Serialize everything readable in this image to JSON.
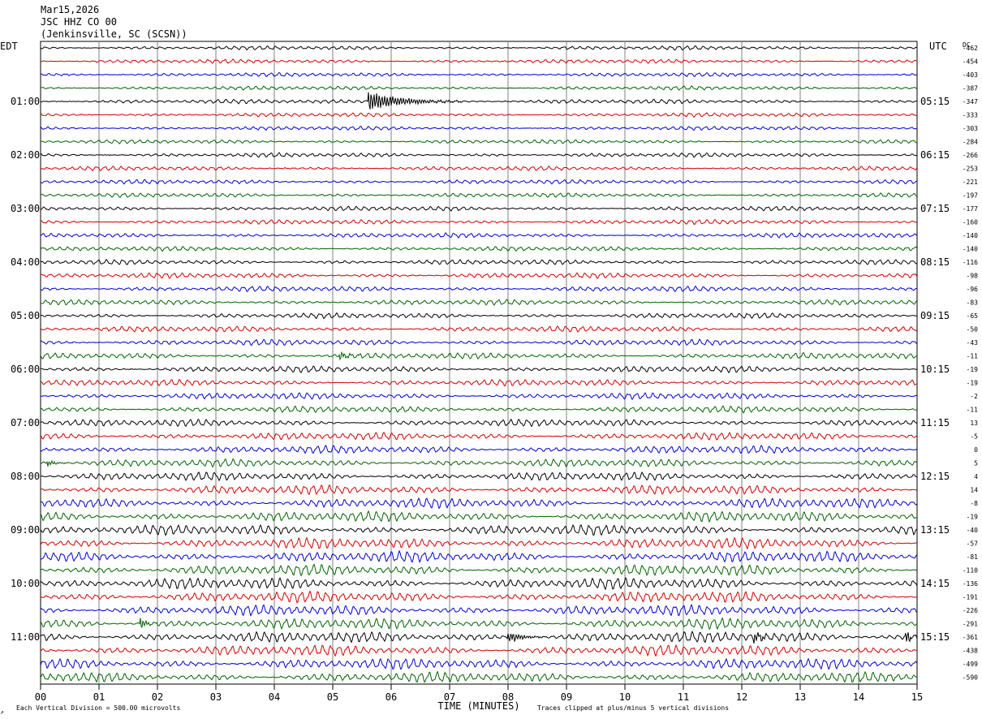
{
  "header": {
    "date": "Mar15,2026",
    "station": "JSC HHZ CO 00",
    "location": "(Jenkinsville, SC (SCSN))"
  },
  "footer": {
    "scale_note": "Each Vertical Division =  500.00 microvolts",
    "clip_note": "Traces clipped at plus/minus 5 vertical divisions",
    "corner_mark": "↗"
  },
  "chart_data": {
    "type": "line",
    "subtype": "helicorder",
    "xlabel": "TIME (MINUTES)",
    "xlim": [
      0,
      15
    ],
    "x_ticks": [
      "00",
      "01",
      "02",
      "03",
      "04",
      "05",
      "06",
      "07",
      "08",
      "09",
      "10",
      "11",
      "12",
      "13",
      "14",
      "15"
    ],
    "left_axis_label": "EDT",
    "right_axis_label": "UTC",
    "dc_label": "DC",
    "vertical_gridlines": true,
    "trace_colors": [
      "#000000",
      "#d10000",
      "#0000d0",
      "#006400"
    ],
    "hour_labels_left": [
      "01:00",
      "02:00",
      "03:00",
      "04:00",
      "05:00",
      "06:00",
      "07:00",
      "08:00",
      "09:00",
      "10:00",
      "11:00"
    ],
    "hour_labels_right": [
      "05:15",
      "06:15",
      "07:15",
      "08:15",
      "09:15",
      "10:15",
      "11:15",
      "12:15",
      "13:15",
      "14:15",
      "15:15"
    ],
    "first_labeled_row": 4,
    "rows_per_hour": 4,
    "row_count": 48,
    "dc_offsets": [
      -462,
      -454,
      -403,
      -387,
      -347,
      -333,
      -303,
      -284,
      -266,
      -253,
      -221,
      -197,
      -177,
      -160,
      -140,
      -140,
      -116,
      -98,
      -96,
      -83,
      -65,
      -50,
      -43,
      -11,
      -19,
      -19,
      -2,
      -11,
      13,
      -5,
      0,
      5,
      4,
      14,
      -8,
      -19,
      -40,
      -57,
      -81,
      -110,
      -136,
      -191,
      -226,
      -291,
      -361,
      -438,
      -499,
      -590
    ],
    "trace_amplitude_relative": [
      0.22,
      0.22,
      0.22,
      0.22,
      0.24,
      0.22,
      0.22,
      0.22,
      0.24,
      0.24,
      0.24,
      0.24,
      0.26,
      0.26,
      0.26,
      0.26,
      0.28,
      0.3,
      0.3,
      0.3,
      0.3,
      0.32,
      0.34,
      0.34,
      0.36,
      0.36,
      0.36,
      0.36,
      0.4,
      0.42,
      0.44,
      0.44,
      0.48,
      0.52,
      0.56,
      0.58,
      0.58,
      0.6,
      0.62,
      0.62,
      0.64,
      0.62,
      0.6,
      0.6,
      0.62,
      0.6,
      0.6,
      0.58
    ],
    "events": [
      {
        "row": 4,
        "start_min": 5.6,
        "duration_min": 1.6,
        "peak_relative": 2.0,
        "type": "local quake"
      },
      {
        "row": 23,
        "start_min": 5.1,
        "duration_min": 0.6,
        "peak_relative": 0.6,
        "type": "burst"
      },
      {
        "row": 31,
        "start_min": 0.1,
        "duration_min": 0.4,
        "peak_relative": 0.7,
        "type": "burst"
      },
      {
        "row": 43,
        "start_min": 1.7,
        "duration_min": 0.3,
        "peak_relative": 1.2,
        "type": "burst"
      },
      {
        "row": 44,
        "start_min": 8.0,
        "duration_min": 0.6,
        "peak_relative": 1.3,
        "type": "burst"
      },
      {
        "row": 44,
        "start_min": 12.2,
        "duration_min": 0.4,
        "peak_relative": 1.2,
        "type": "burst"
      },
      {
        "row": 44,
        "start_min": 14.8,
        "duration_min": 0.2,
        "peak_relative": 1.4,
        "type": "burst"
      }
    ]
  }
}
